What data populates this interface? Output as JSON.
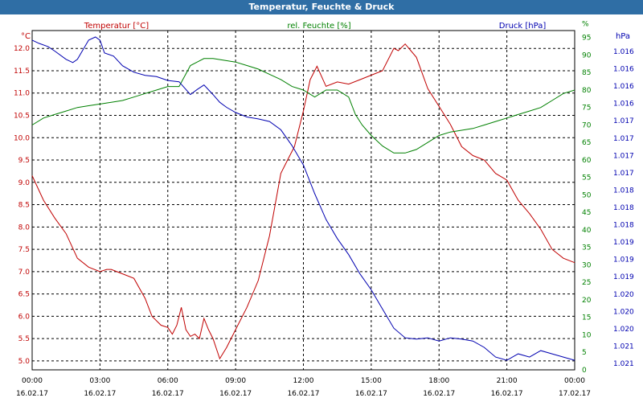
{
  "window": {
    "title": "Temperatur, Feuchte & Druck"
  },
  "chart_data": {
    "type": "line",
    "title": "Temperatur, Feuchte & Druck",
    "grid": true,
    "colors": {
      "temperature": "#c00000",
      "humidity": "#008000",
      "pressure": "#0000b0",
      "grid": "#000000",
      "titlebar": "#2f6ea5"
    },
    "x_ticks": [
      {
        "time": "00:00",
        "date": "16.02.17"
      },
      {
        "time": "03:00",
        "date": "16.02.17"
      },
      {
        "time": "06:00",
        "date": "16.02.17"
      },
      {
        "time": "09:00",
        "date": "16.02.17"
      },
      {
        "time": "12:00",
        "date": "16.02.17"
      },
      {
        "time": "15:00",
        "date": "16.02.17"
      },
      {
        "time": "18:00",
        "date": "16.02.17"
      },
      {
        "time": "21:00",
        "date": "16.02.17"
      },
      {
        "time": "00:00",
        "date": "17.02.17"
      }
    ],
    "x_range_hours": [
      0,
      24
    ],
    "left_axis": {
      "unit": "°C",
      "label": "Temperatur [°C]",
      "range": [
        4.8,
        12.4
      ],
      "ticks": [
        "5.0",
        "5.5",
        "6.0",
        "6.5",
        "7.0",
        "7.5",
        "8.0",
        "8.5",
        "9.0",
        "9.5",
        "10.0",
        "10.5",
        "11.0",
        "11.5",
        "12.0"
      ]
    },
    "mid_axis": {
      "unit": "%",
      "label": "rel. Feuchte [%]",
      "range": [
        0,
        97
      ],
      "ticks": [
        "0",
        "5",
        "10",
        "15",
        "20",
        "25",
        "30",
        "35",
        "40",
        "45",
        "50",
        "55",
        "60",
        "65",
        "70",
        "75",
        "80",
        "85",
        "90",
        "95",
        "%"
      ]
    },
    "right_axis": {
      "unit": "hPa",
      "label": "Druck [hPa]",
      "range": [
        1015.8,
        1021.1
      ],
      "ticks": [
        "1.016",
        "1.016",
        "1.016",
        "1.016",
        "1.017",
        "1.017",
        "1.017",
        "1.017",
        "1.018",
        "1.018",
        "1.018",
        "1.019",
        "1.019",
        "1.019",
        "1.020",
        "1.020",
        "1.020",
        "1.021",
        "1.021"
      ]
    },
    "series": [
      {
        "name": "Temperatur [°C]",
        "x": [
          0,
          0.5,
          1,
          1.5,
          2,
          2.5,
          3,
          3.3,
          3.5,
          4,
          4.5,
          5,
          5.3,
          5.7,
          6,
          6.2,
          6.4,
          6.6,
          6.8,
          7,
          7.2,
          7.4,
          7.6,
          7.8,
          8,
          8.3,
          8.6,
          9,
          9.5,
          10,
          10.5,
          11,
          11.3,
          11.6,
          12,
          12.3,
          12.6,
          13,
          13.5,
          14,
          14.5,
          15,
          15.5,
          16,
          16.2,
          16.5,
          17,
          17.5,
          18,
          18.5,
          19,
          19.5,
          20,
          20.5,
          21,
          21.5,
          22,
          22.5,
          23,
          23.5,
          24
        ],
        "values": [
          9.15,
          8.6,
          8.2,
          7.85,
          7.3,
          7.1,
          7.0,
          7.05,
          7.05,
          6.95,
          6.85,
          6.4,
          6.0,
          5.8,
          5.75,
          5.6,
          5.8,
          6.2,
          5.7,
          5.55,
          5.6,
          5.5,
          5.95,
          5.7,
          5.5,
          5.05,
          5.3,
          5.7,
          6.2,
          6.8,
          7.8,
          9.2,
          9.5,
          9.8,
          10.6,
          11.3,
          11.6,
          11.15,
          11.25,
          11.2,
          11.3,
          11.4,
          11.5,
          12.0,
          11.95,
          12.1,
          11.8,
          11.1,
          10.7,
          10.3,
          9.8,
          9.6,
          9.5,
          9.2,
          9.05,
          8.6,
          8.3,
          7.95,
          7.5,
          7.3,
          7.2
        ]
      },
      {
        "name": "rel. Feuchte [%]",
        "x": [
          0,
          0.5,
          1,
          1.5,
          2,
          2.5,
          3,
          3.5,
          4,
          4.5,
          5,
          5.5,
          6,
          6.5,
          7,
          7.3,
          7.6,
          8,
          8.5,
          9,
          9.5,
          10,
          10.5,
          11,
          11.5,
          12,
          12.5,
          13,
          13.5,
          14,
          14.3,
          14.6,
          15,
          15.5,
          16,
          16.5,
          17,
          17.5,
          18,
          18.5,
          19,
          19.5,
          20,
          20.5,
          21,
          21.5,
          22,
          22.5,
          23,
          23.5,
          24
        ],
        "values": [
          70,
          72,
          73,
          74,
          75,
          75.5,
          76,
          76.5,
          77,
          78,
          79,
          80,
          81,
          81,
          87,
          88,
          89,
          89,
          88.5,
          88,
          87,
          86,
          84.5,
          83,
          81,
          80,
          78,
          80,
          80,
          78,
          73,
          70,
          67,
          64,
          62,
          62,
          63,
          65,
          67,
          68,
          68.5,
          69,
          70,
          71,
          72,
          73,
          74,
          75,
          77,
          79,
          80
        ]
      },
      {
        "name": "Druck [hPa]",
        "x": [
          0,
          0.3,
          0.7,
          1,
          1.5,
          1.8,
          2,
          2.5,
          2.8,
          3,
          3.2,
          3.6,
          4,
          4.5,
          5,
          5.5,
          6,
          6.5,
          7,
          7.3,
          7.6,
          8,
          8.3,
          8.6,
          9,
          9.5,
          10,
          10.5,
          11,
          11.5,
          12,
          12.5,
          13,
          13.5,
          14,
          14.5,
          15,
          15.5,
          16,
          16.5,
          17,
          17.5,
          18,
          18.5,
          19,
          19.5,
          20,
          20.5,
          21,
          21.5,
          22,
          22.5,
          23,
          23.5,
          24
        ],
        "values": [
          1020.95,
          1020.9,
          1020.85,
          1020.78,
          1020.65,
          1020.6,
          1020.65,
          1020.95,
          1021.0,
          1020.95,
          1020.75,
          1020.7,
          1020.55,
          1020.45,
          1020.4,
          1020.38,
          1020.32,
          1020.3,
          1020.1,
          1020.18,
          1020.25,
          1020.1,
          1019.98,
          1019.9,
          1019.82,
          1019.75,
          1019.72,
          1019.68,
          1019.55,
          1019.3,
          1019.0,
          1018.55,
          1018.15,
          1017.85,
          1017.6,
          1017.3,
          1017.05,
          1016.75,
          1016.45,
          1016.3,
          1016.28,
          1016.3,
          1016.25,
          1016.3,
          1016.28,
          1016.25,
          1016.15,
          1016.0,
          1015.95,
          1016.05,
          1016.0,
          1016.1,
          1016.05,
          1016.0,
          1015.95
        ]
      }
    ]
  }
}
